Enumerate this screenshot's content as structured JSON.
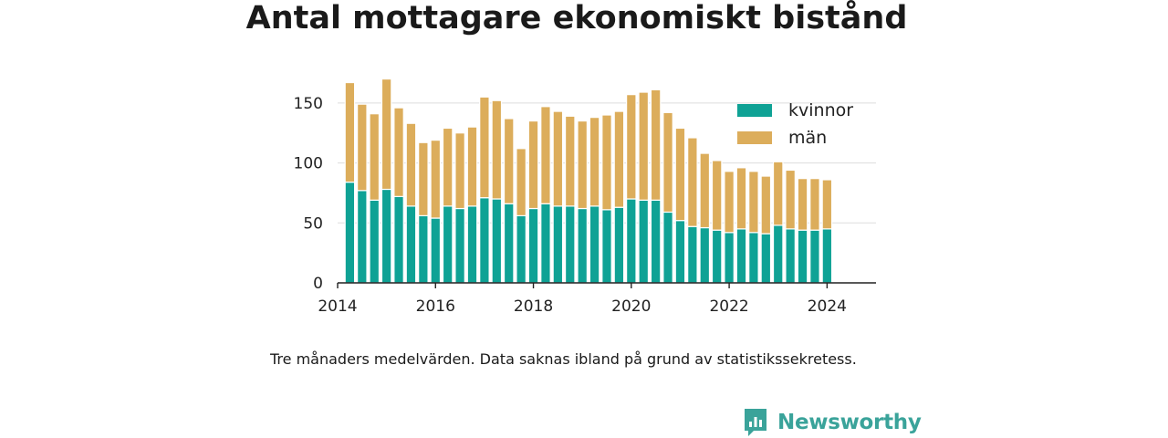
{
  "title": "Antal mottagare ekonomiskt bistånd",
  "caption": "Tre månaders medelvärden. Data saknas ibland på grund av statistikssekretess.",
  "brand": {
    "name": "Newsworthy",
    "icon": "bar-chart-speech-bubble-icon",
    "color": "#3aa39a"
  },
  "chart_data": {
    "type": "bar",
    "stacked": true,
    "x_tick_labels": [
      "2014",
      "2016",
      "2018",
      "2020",
      "2022",
      "2024"
    ],
    "y_ticks": [
      0,
      50,
      100,
      150
    ],
    "ylim": [
      0,
      175
    ],
    "xlim": [
      "2014-01-01",
      "2025-01-01"
    ],
    "legend_position": "top-right",
    "grid": true,
    "x": [
      "2014-04",
      "2014-07",
      "2014-10",
      "2015-01",
      "2015-04",
      "2015-07",
      "2015-10",
      "2016-01",
      "2016-04",
      "2016-07",
      "2016-10",
      "2017-01",
      "2017-04",
      "2017-07",
      "2017-10",
      "2018-01",
      "2018-04",
      "2018-07",
      "2018-10",
      "2019-01",
      "2019-04",
      "2019-07",
      "2019-10",
      "2020-01",
      "2020-04",
      "2020-07",
      "2020-10",
      "2021-01",
      "2021-04",
      "2021-07",
      "2021-10",
      "2022-01",
      "2022-04",
      "2022-07",
      "2022-10",
      "2023-01",
      "2023-04",
      "2023-07",
      "2023-10",
      "2024-01"
    ],
    "series": [
      {
        "name": "kvinnor",
        "color": "#0fa295",
        "values": [
          84,
          77,
          69,
          78,
          72,
          64,
          56,
          54,
          64,
          62,
          64,
          71,
          70,
          66,
          56,
          62,
          66,
          64,
          64,
          62,
          64,
          61,
          63,
          70,
          69,
          69,
          59,
          52,
          47,
          46,
          44,
          42,
          45,
          42,
          41,
          48,
          45,
          44,
          44,
          45
        ]
      },
      {
        "name": "män",
        "color": "#dcad5b",
        "values": [
          83,
          72,
          72,
          92,
          74,
          69,
          61,
          65,
          65,
          63,
          66,
          84,
          82,
          71,
          56,
          73,
          81,
          79,
          75,
          73,
          74,
          79,
          80,
          87,
          90,
          92,
          83,
          77,
          74,
          62,
          58,
          51,
          51,
          51,
          48,
          53,
          49,
          43,
          43,
          41
        ]
      }
    ]
  }
}
